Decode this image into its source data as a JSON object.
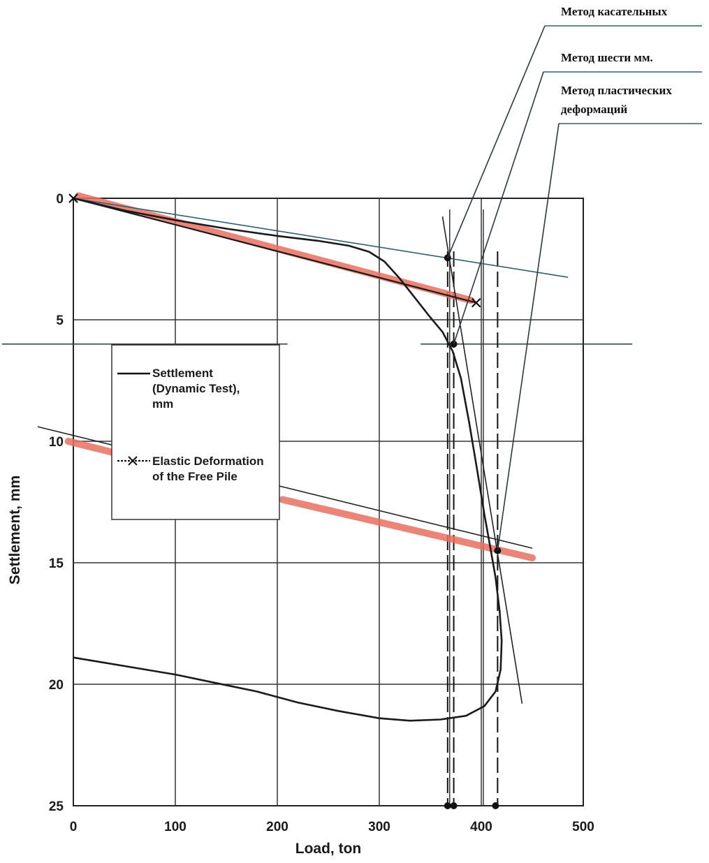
{
  "chart_data": {
    "type": "line",
    "xlabel": "Load, ton",
    "ylabel": "Settlement, mm",
    "xlim": [
      0,
      500
    ],
    "ylim": [
      0,
      25
    ],
    "y_inverted": true,
    "grid": true,
    "x_ticks": [
      "0",
      "100",
      "200",
      "300",
      "400",
      "500"
    ],
    "y_ticks": [
      "0",
      "5",
      "10",
      "15",
      "20",
      "25"
    ],
    "legend": {
      "placement": "center-left",
      "entries": [
        {
          "lines": [
            "Settlement",
            "(Dynamic Test),",
            "mm"
          ],
          "marker": "none"
        },
        {
          "lines": [
            "Elastic Deformation",
            "of the Free Pile"
          ],
          "marker": "x"
        }
      ]
    },
    "series": [
      {
        "name": "Settlement (Dynamic Test), mm",
        "color": "#1a1a1a",
        "points": [
          [
            0,
            0
          ],
          [
            50,
            0.5
          ],
          [
            100,
            0.9
          ],
          [
            150,
            1.25
          ],
          [
            200,
            1.55
          ],
          [
            240,
            1.75
          ],
          [
            270,
            1.95
          ],
          [
            290,
            2.2
          ],
          [
            305,
            2.6
          ],
          [
            320,
            3.3
          ],
          [
            335,
            4.1
          ],
          [
            350,
            4.9
          ],
          [
            362,
            5.5
          ],
          [
            372,
            6.3
          ],
          [
            380,
            7.4
          ],
          [
            388,
            9.2
          ],
          [
            396,
            11.2
          ],
          [
            403,
            13.0
          ],
          [
            409,
            14.4
          ],
          [
            414,
            15.6
          ],
          [
            418,
            17.0
          ],
          [
            420,
            18.2
          ],
          [
            419,
            19.4
          ],
          [
            414,
            20.3
          ],
          [
            403,
            20.9
          ],
          [
            385,
            21.3
          ],
          [
            360,
            21.45
          ],
          [
            330,
            21.5
          ],
          [
            300,
            21.4
          ],
          [
            260,
            21.1
          ],
          [
            220,
            20.75
          ],
          [
            180,
            20.3
          ],
          [
            140,
            19.95
          ],
          [
            100,
            19.6
          ],
          [
            50,
            19.25
          ],
          [
            0,
            18.9
          ]
        ]
      },
      {
        "name": "Elastic Deformation of the Free Pile",
        "color": "#1a1a1a",
        "marker": "x",
        "points": [
          [
            0,
            0
          ],
          [
            395,
            4.3
          ]
        ]
      }
    ],
    "construction_lines": [
      {
        "points": [
          [
            0,
            0
          ],
          [
            485,
            3.25
          ]
        ],
        "color": "#2f6070"
      },
      {
        "points": [
          [
            -35,
            9.4
          ],
          [
            450,
            14.4
          ]
        ],
        "color": "#222222"
      },
      {
        "points": [
          [
            362,
            0.75
          ],
          [
            440,
            20.8
          ]
        ],
        "color": "#222222"
      }
    ],
    "highlight_bands": [
      {
        "points": [
          [
            5,
            -0.1
          ],
          [
            390,
            4.2
          ]
        ],
        "color": "#e8705f"
      },
      {
        "points": [
          [
            -5,
            10.0
          ],
          [
            38,
            10.45
          ]
        ],
        "color": "#e8705f"
      },
      {
        "points": [
          [
            205,
            12.4
          ],
          [
            450,
            14.8
          ]
        ],
        "color": "#e8705f"
      }
    ],
    "horizontal_line": {
      "y": 6.0,
      "x_range": [
        -70,
        548
      ],
      "gap": [
        210,
        205
      ]
    },
    "dashed_verticals": [
      367,
      373,
      416
    ],
    "solid_verticals": [
      369,
      402
    ],
    "intersection_points": [
      [
        367,
        2.45
      ],
      [
        373,
        6.0
      ],
      [
        416,
        14.5
      ],
      [
        367,
        25
      ],
      [
        373,
        25
      ],
      [
        414,
        25
      ]
    ],
    "annotations": [
      {
        "lines": [
          "Метод касательных"
        ],
        "target": [
          367,
          2.45
        ]
      },
      {
        "lines": [
          "Метод шести мм."
        ],
        "target": [
          373,
          6.0
        ]
      },
      {
        "lines": [
          "Метод пластических",
          "деформаций"
        ],
        "target": [
          416,
          14.5
        ]
      }
    ]
  }
}
